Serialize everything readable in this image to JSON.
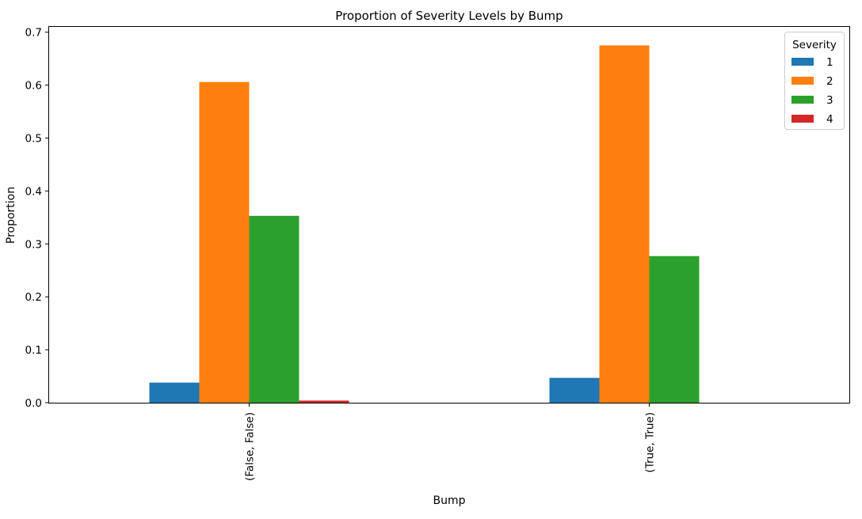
{
  "chart_data": {
    "type": "bar",
    "title": "Proportion of Severity Levels by Bump",
    "xlabel": "Bump",
    "ylabel": "Proportion",
    "categories": [
      "(False, False)",
      "(True, True)"
    ],
    "ylim": [
      0,
      0.71
    ],
    "yticks": [
      "0.0",
      "0.1",
      "0.2",
      "0.3",
      "0.4",
      "0.5",
      "0.6",
      "0.7"
    ],
    "legend": {
      "title": "Severity",
      "placement": "top-right"
    },
    "grid": false,
    "series": [
      {
        "name": "1",
        "color": "#1f77b4",
        "values": [
          0.038,
          0.047
        ]
      },
      {
        "name": "2",
        "color": "#ff7f0e",
        "values": [
          0.606,
          0.675
        ]
      },
      {
        "name": "3",
        "color": "#2ca02c",
        "values": [
          0.353,
          0.277
        ]
      },
      {
        "name": "4",
        "color": "#d62728",
        "values": [
          0.004,
          0.0
        ]
      }
    ]
  }
}
